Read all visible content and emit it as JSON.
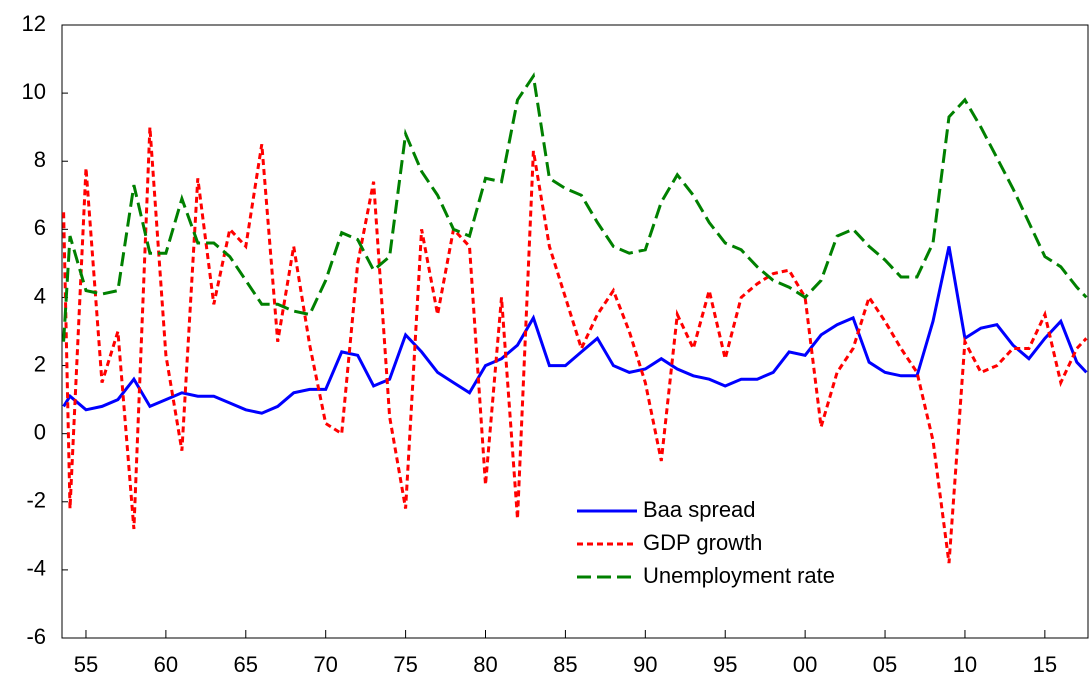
{
  "chart_data": {
    "type": "line",
    "x": [
      1953.6,
      1954,
      1955,
      1956,
      1957,
      1958,
      1959,
      1960,
      1961,
      1962,
      1963,
      1964,
      1965,
      1966,
      1967,
      1968,
      1969,
      1970,
      1971,
      1972,
      1973,
      1974,
      1975,
      1976,
      1977,
      1978,
      1979,
      1980,
      1981,
      1982,
      1983,
      1984,
      1985,
      1986,
      1987,
      1988,
      1989,
      1990,
      1991,
      1992,
      1993,
      1994,
      1995,
      1996,
      1997,
      1998,
      1999,
      2000,
      2001,
      2002,
      2003,
      2004,
      2005,
      2006,
      2007,
      2008,
      2009,
      2010,
      2011,
      2012,
      2013,
      2014,
      2015,
      2016,
      2017,
      2017.6
    ],
    "series": [
      {
        "name": "Baa spread",
        "color": "#0000ff",
        "dash": "none",
        "values": [
          0.8,
          1.1,
          0.7,
          0.8,
          1.0,
          1.6,
          0.8,
          1.0,
          1.2,
          1.1,
          1.1,
          0.9,
          0.7,
          0.6,
          0.8,
          1.2,
          1.3,
          1.3,
          2.4,
          2.3,
          1.4,
          1.6,
          2.9,
          2.4,
          1.8,
          1.5,
          1.2,
          2.0,
          2.2,
          2.6,
          3.4,
          2.0,
          2.0,
          2.4,
          2.8,
          2.0,
          1.8,
          1.9,
          2.2,
          1.9,
          1.7,
          1.6,
          1.4,
          1.6,
          1.6,
          1.8,
          2.4,
          2.3,
          2.9,
          3.2,
          3.4,
          2.1,
          1.8,
          1.7,
          1.7,
          3.3,
          5.5,
          2.8,
          3.1,
          3.2,
          2.6,
          2.2,
          2.8,
          3.3,
          2.1,
          1.8
        ]
      },
      {
        "name": "GDP growth",
        "color": "#ff0000",
        "dash": "6 4",
        "values": [
          6.5,
          -2.2,
          7.8,
          1.5,
          3.0,
          -2.8,
          9.0,
          2.3,
          -0.5,
          7.5,
          3.8,
          6.0,
          5.5,
          8.5,
          2.7,
          5.5,
          2.6,
          0.3,
          0.0,
          5.0,
          7.4,
          0.5,
          -2.2,
          6.0,
          3.5,
          6.0,
          5.5,
          -1.5,
          4.0,
          -2.5,
          8.3,
          5.5,
          4.0,
          2.5,
          3.5,
          4.2,
          3.0,
          1.5,
          -0.8,
          3.5,
          2.5,
          4.2,
          2.2,
          4.0,
          4.4,
          4.7,
          4.8,
          4.0,
          0.2,
          1.8,
          2.5,
          4.0,
          3.3,
          2.5,
          1.8,
          -0.2,
          -3.8,
          2.7,
          1.8,
          2.0,
          2.5,
          2.5,
          3.5,
          1.5,
          2.5,
          2.8
        ]
      },
      {
        "name": "Unemployment rate",
        "color": "#008000",
        "dash": "14 6",
        "values": [
          2.7,
          5.8,
          4.2,
          4.1,
          4.2,
          7.3,
          5.3,
          5.3,
          6.9,
          5.6,
          5.6,
          5.2,
          4.5,
          3.8,
          3.8,
          3.6,
          3.5,
          4.5,
          5.9,
          5.7,
          4.8,
          5.2,
          8.8,
          7.7,
          7.0,
          6.0,
          5.8,
          7.5,
          7.4,
          9.8,
          10.5,
          7.5,
          7.2,
          7.0,
          6.2,
          5.5,
          5.3,
          5.4,
          6.8,
          7.6,
          7.0,
          6.2,
          5.6,
          5.4,
          4.9,
          4.5,
          4.3,
          4.0,
          4.5,
          5.8,
          6.0,
          5.5,
          5.1,
          4.6,
          4.6,
          5.6,
          9.3,
          9.8,
          9.0,
          8.1,
          7.2,
          6.2,
          5.2,
          4.9,
          4.3,
          4.0
        ]
      }
    ],
    "xlim": [
      1953.5,
      2017.7
    ],
    "xticks": [
      {
        "value": 1955,
        "label": "55"
      },
      {
        "value": 1960,
        "label": "60"
      },
      {
        "value": 1965,
        "label": "65"
      },
      {
        "value": 1970,
        "label": "70"
      },
      {
        "value": 1975,
        "label": "75"
      },
      {
        "value": 1980,
        "label": "80"
      },
      {
        "value": 1985,
        "label": "85"
      },
      {
        "value": 1990,
        "label": "90"
      },
      {
        "value": 1995,
        "label": "95"
      },
      {
        "value": 2000,
        "label": "00"
      },
      {
        "value": 2005,
        "label": "05"
      },
      {
        "value": 2010,
        "label": "10"
      },
      {
        "value": 2015,
        "label": "15"
      }
    ],
    "ylim": [
      -6,
      12
    ],
    "yticks": [
      -6,
      -4,
      -2,
      0,
      2,
      4,
      6,
      8,
      10,
      12
    ]
  }
}
